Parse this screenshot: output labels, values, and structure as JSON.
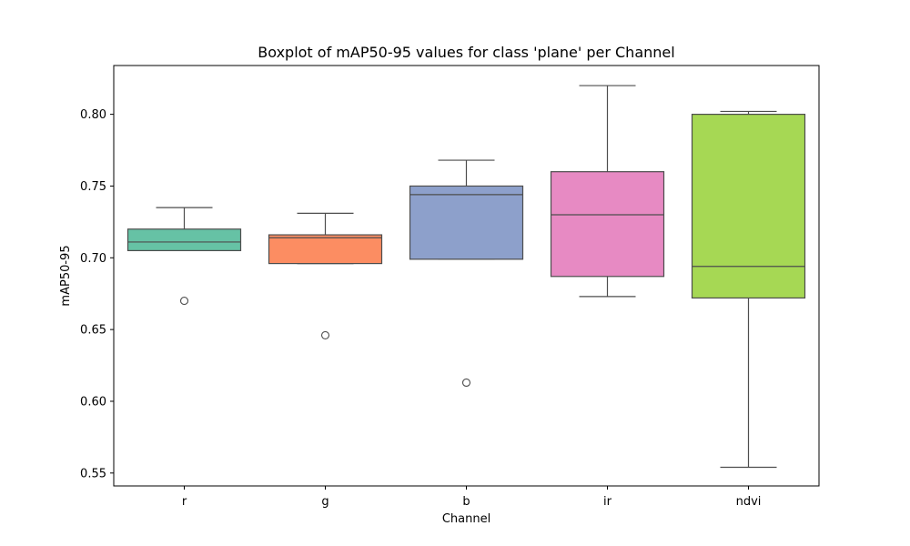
{
  "chart_data": {
    "type": "boxplot",
    "title": "Boxplot of mAP50-95 values for class 'plane' per Channel",
    "xlabel": "Channel",
    "ylabel": "mAP50-95",
    "ylim": [
      0.541,
      0.834
    ],
    "yticks": [
      "0.55",
      "0.60",
      "0.65",
      "0.70",
      "0.75",
      "0.80"
    ],
    "grid": false,
    "categories": [
      "r",
      "g",
      "b",
      "ir",
      "ndvi"
    ],
    "colors": [
      "#66c2a5",
      "#fc8d62",
      "#8da0cb",
      "#e78ac3",
      "#a6d854"
    ],
    "boxes": [
      {
        "whisker_low": 0.705,
        "q1": 0.705,
        "median": 0.711,
        "q3": 0.72,
        "whisker_high": 0.735,
        "outliers": [
          0.67
        ]
      },
      {
        "whisker_low": 0.696,
        "q1": 0.696,
        "median": 0.714,
        "q3": 0.716,
        "whisker_high": 0.731,
        "outliers": [
          0.646
        ]
      },
      {
        "whisker_low": 0.699,
        "q1": 0.699,
        "median": 0.744,
        "q3": 0.75,
        "whisker_high": 0.768,
        "outliers": [
          0.613
        ]
      },
      {
        "whisker_low": 0.673,
        "q1": 0.687,
        "median": 0.73,
        "q3": 0.76,
        "whisker_high": 0.82,
        "outliers": []
      },
      {
        "whisker_low": 0.554,
        "q1": 0.672,
        "median": 0.694,
        "q3": 0.8,
        "whisker_high": 0.802,
        "outliers": []
      }
    ]
  }
}
